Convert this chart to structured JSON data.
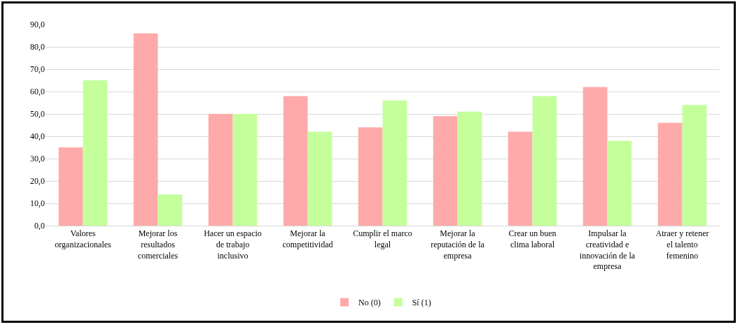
{
  "chart_data": {
    "type": "bar",
    "categories": [
      "Valores organizacionales",
      "Mejorar los resultados comerciales",
      "Hacer un espacio de trabajo inclusivo",
      "Mejorar la competitividad",
      "Cumplir el marco legal",
      "Mejorar la reputación de la empresa",
      "Crear un buen clima laboral",
      "Impulsar la creatividad e innovación de la empresa",
      "Atraer y retener el talento femenino"
    ],
    "series": [
      {
        "name": "No (0)",
        "color": "#ffaaaa",
        "values": [
          35,
          86,
          50,
          58,
          44,
          49,
          42,
          62,
          46
        ]
      },
      {
        "name": "Sí (1)",
        "color": "#c4ff9c",
        "values": [
          65,
          14,
          50,
          42,
          56,
          51,
          58,
          38,
          54
        ]
      }
    ],
    "ylim": [
      0,
      90
    ],
    "yticks": [
      {
        "value": 0,
        "label": "0,0"
      },
      {
        "value": 10,
        "label": "10,0"
      },
      {
        "value": 20,
        "label": "20,0"
      },
      {
        "value": 30,
        "label": "30,0"
      },
      {
        "value": 40,
        "label": "40,0"
      },
      {
        "value": 50,
        "label": "50,0"
      },
      {
        "value": 60,
        "label": "60,0"
      },
      {
        "value": 70,
        "label": "70,0"
      },
      {
        "value": 80,
        "label": "80,0"
      },
      {
        "value": 90,
        "label": "90,0"
      }
    ],
    "grid": true,
    "legend": "bottom"
  }
}
